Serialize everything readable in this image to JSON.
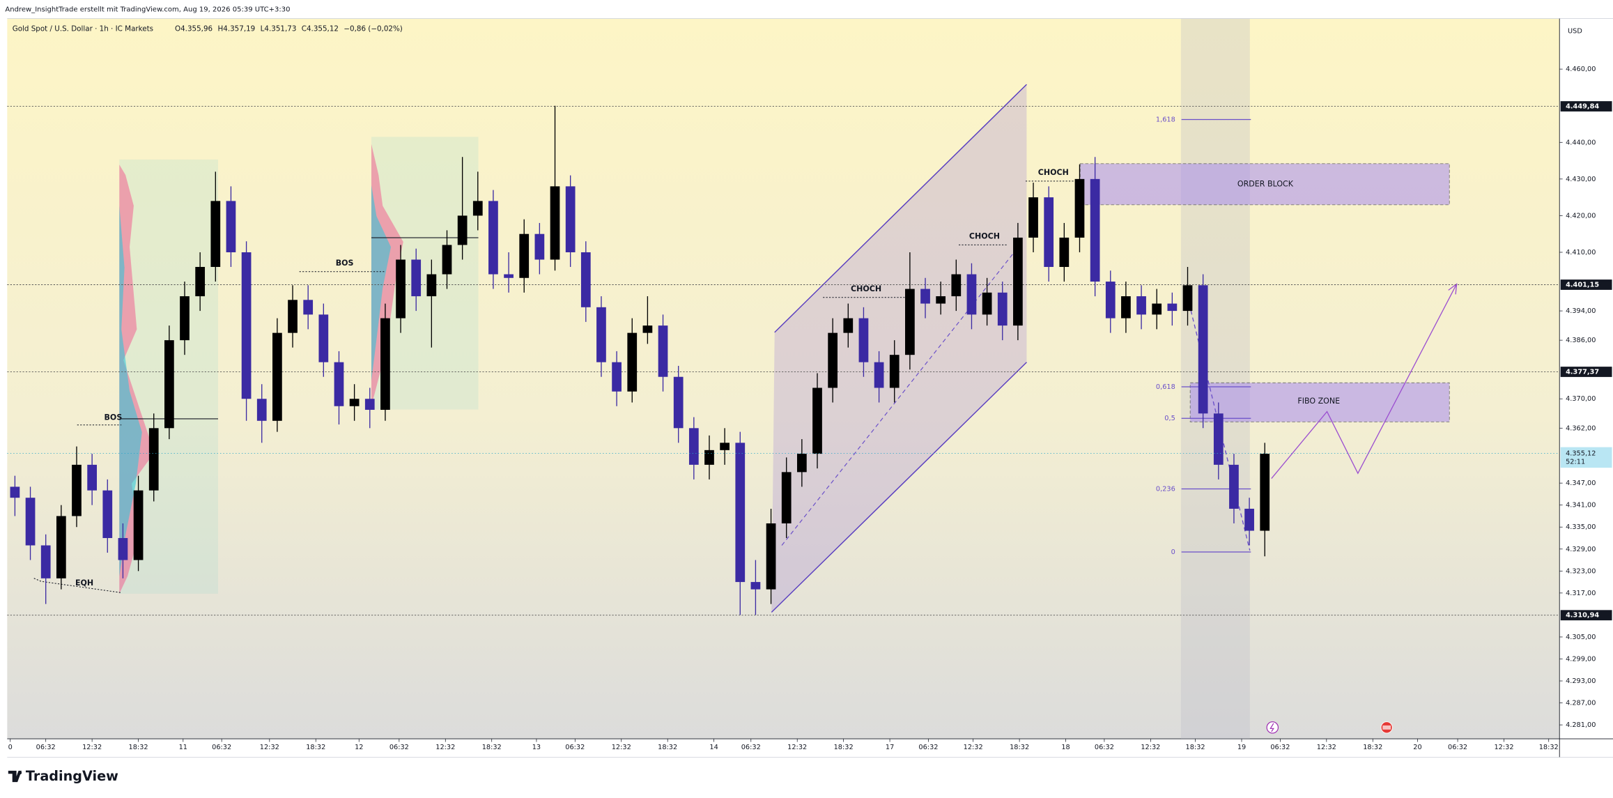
{
  "header": {
    "credit": "Andrew_InsightTrade erstellt mit TradingView.com, Aug 19, 2026 05:39 UTC+3:30",
    "currency": "USD",
    "logo": "TradingView"
  },
  "chart_data": {
    "type": "candlestick",
    "title": "Gold Spot / U.S. Dollar · 1h · IC Markets",
    "legend": [
      "O4.355,96",
      "H4.357,19",
      "L4.351,73",
      "C4.355,12",
      "−0,86 (−0,02%)"
    ],
    "up_color": "#000000",
    "down_color": "#3b2aa3",
    "ohlc": [
      [
        4346,
        4349,
        4338,
        4343
      ],
      [
        4343,
        4346,
        4326,
        4330
      ],
      [
        4330,
        4333,
        4314,
        4321
      ],
      [
        4321,
        4341,
        4318,
        4338
      ],
      [
        4338,
        4357,
        4335,
        4352
      ],
      [
        4352,
        4355,
        4341,
        4345
      ],
      [
        4345,
        4348,
        4328,
        4332
      ],
      [
        4332,
        4336,
        4321,
        4326
      ],
      [
        4326,
        4349,
        4323,
        4345
      ],
      [
        4345,
        4366,
        4342,
        4362
      ],
      [
        4362,
        4390,
        4359,
        4386
      ],
      [
        4386,
        4402,
        4382,
        4398
      ],
      [
        4398,
        4410,
        4394,
        4406
      ],
      [
        4406,
        4432,
        4402,
        4424
      ],
      [
        4424,
        4428,
        4406,
        4410
      ],
      [
        4410,
        4413,
        4364,
        4370
      ],
      [
        4370,
        4374,
        4358,
        4364
      ],
      [
        4364,
        4392,
        4361,
        4388
      ],
      [
        4388,
        4401,
        4384,
        4397
      ],
      [
        4397,
        4401,
        4389,
        4393
      ],
      [
        4393,
        4396,
        4376,
        4380
      ],
      [
        4380,
        4383,
        4363,
        4368
      ],
      [
        4368,
        4374,
        4364,
        4370
      ],
      [
        4370,
        4373,
        4362,
        4367
      ],
      [
        4367,
        4396,
        4364,
        4392
      ],
      [
        4392,
        4412,
        4388,
        4408
      ],
      [
        4408,
        4411,
        4394,
        4398
      ],
      [
        4398,
        4408,
        4384,
        4404
      ],
      [
        4404,
        4416,
        4400,
        4412
      ],
      [
        4412,
        4436,
        4408,
        4420
      ],
      [
        4420,
        4432,
        4416,
        4424
      ],
      [
        4424,
        4427,
        4400,
        4404
      ],
      [
        4404,
        4410,
        4399,
        4403
      ],
      [
        4403,
        4419,
        4399,
        4415
      ],
      [
        4415,
        4418,
        4404,
        4408
      ],
      [
        4408,
        4450,
        4405,
        4428
      ],
      [
        4428,
        4431,
        4406,
        4410
      ],
      [
        4410,
        4413,
        4391,
        4395
      ],
      [
        4395,
        4398,
        4376,
        4380
      ],
      [
        4380,
        4383,
        4368,
        4372
      ],
      [
        4372,
        4392,
        4369,
        4388
      ],
      [
        4388,
        4398,
        4385,
        4390
      ],
      [
        4390,
        4393,
        4372,
        4376
      ],
      [
        4376,
        4379,
        4358,
        4362
      ],
      [
        4362,
        4365,
        4348,
        4352
      ],
      [
        4352,
        4360,
        4348,
        4356
      ],
      [
        4356,
        4362,
        4352,
        4358
      ],
      [
        4358,
        4361,
        4311,
        4320
      ],
      [
        4320,
        4326,
        4311,
        4318
      ],
      [
        4318,
        4340,
        4314,
        4336
      ],
      [
        4336,
        4354,
        4332,
        4350
      ],
      [
        4350,
        4359,
        4346,
        4355
      ],
      [
        4355,
        4377,
        4351,
        4373
      ],
      [
        4373,
        4392,
        4369,
        4388
      ],
      [
        4388,
        4396,
        4384,
        4392
      ],
      [
        4392,
        4395,
        4376,
        4380
      ],
      [
        4380,
        4383,
        4369,
        4373
      ],
      [
        4373,
        4386,
        4369,
        4382
      ],
      [
        4382,
        4410,
        4378,
        4400
      ],
      [
        4400,
        4403,
        4392,
        4396
      ],
      [
        4396,
        4402,
        4393,
        4398
      ],
      [
        4398,
        4408,
        4394,
        4404
      ],
      [
        4404,
        4407,
        4389,
        4393
      ],
      [
        4393,
        4403,
        4390,
        4399
      ],
      [
        4399,
        4402,
        4386,
        4390
      ],
      [
        4390,
        4418,
        4386,
        4414
      ],
      [
        4414,
        4429,
        4410,
        4425
      ],
      [
        4425,
        4428,
        4402,
        4406
      ],
      [
        4406,
        4418,
        4402,
        4414
      ],
      [
        4414,
        4434,
        4410,
        4430
      ],
      [
        4430,
        4436,
        4398,
        4402
      ],
      [
        4402,
        4405,
        4388,
        4392
      ],
      [
        4392,
        4402,
        4388,
        4398
      ],
      [
        4398,
        4401,
        4389,
        4393
      ],
      [
        4393,
        4400,
        4389,
        4396
      ],
      [
        4396,
        4399,
        4390,
        4394
      ],
      [
        4394,
        4406,
        4390,
        4401
      ],
      [
        4401,
        4404,
        4362,
        4366
      ],
      [
        4366,
        4369,
        4348,
        4352
      ],
      [
        4352,
        4355,
        4336,
        4340
      ],
      [
        4340,
        4343,
        4330,
        4334
      ],
      [
        4334,
        4358,
        4327,
        4355
      ]
    ],
    "xlim": [
      -0.5,
      100.1
    ],
    "xticks": [
      {
        "value": -0.3,
        "label": "0"
      },
      {
        "value": 2.0,
        "label": "06:32"
      },
      {
        "value": 5.0,
        "label": "12:32"
      },
      {
        "value": 8.0,
        "label": "18:32"
      },
      {
        "value": 10.9,
        "label": "11"
      },
      {
        "value": 13.4,
        "label": "06:32"
      },
      {
        "value": 16.5,
        "label": "12:32"
      },
      {
        "value": 19.5,
        "label": "18:32"
      },
      {
        "value": 22.3,
        "label": "12"
      },
      {
        "value": 24.9,
        "label": "06:32"
      },
      {
        "value": 27.9,
        "label": "12:32"
      },
      {
        "value": 30.9,
        "label": "18:32"
      },
      {
        "value": 33.8,
        "label": "13"
      },
      {
        "value": 36.3,
        "label": "06:32"
      },
      {
        "value": 39.3,
        "label": "12:32"
      },
      {
        "value": 42.3,
        "label": "18:32"
      },
      {
        "value": 45.3,
        "label": "14"
      },
      {
        "value": 47.7,
        "label": "06:32"
      },
      {
        "value": 50.7,
        "label": "12:32"
      },
      {
        "value": 53.7,
        "label": "18:32"
      },
      {
        "value": 56.7,
        "label": "17"
      },
      {
        "value": 59.2,
        "label": "06:32"
      },
      {
        "value": 62.1,
        "label": "12:32"
      },
      {
        "value": 65.1,
        "label": "18:32"
      },
      {
        "value": 68.1,
        "label": "18"
      },
      {
        "value": 70.6,
        "label": "06:32"
      },
      {
        "value": 73.6,
        "label": "12:32"
      },
      {
        "value": 76.5,
        "label": "18:32"
      },
      {
        "value": 79.5,
        "label": "19"
      },
      {
        "value": 82.0,
        "label": "06:32"
      },
      {
        "value": 85.0,
        "label": "12:32"
      },
      {
        "value": 88.0,
        "label": "18:32"
      },
      {
        "value": 90.9,
        "label": "20"
      },
      {
        "value": 93.5,
        "label": "06:32"
      },
      {
        "value": 96.5,
        "label": "12:32"
      },
      {
        "value": 99.4,
        "label": "18:32"
      }
    ],
    "ylim": [
      4277.2,
      4473.8
    ],
    "yticks": [
      {
        "value": 4460,
        "label": "4.460,00"
      },
      {
        "value": 4440,
        "label": "4.440,00"
      },
      {
        "value": 4430,
        "label": "4.430,00"
      },
      {
        "value": 4420,
        "label": "4.420,00"
      },
      {
        "value": 4410,
        "label": "4.410,00"
      },
      {
        "value": 4394,
        "label": "4.394,00"
      },
      {
        "value": 4386,
        "label": "4.386,00"
      },
      {
        "value": 4370,
        "label": "4.370,00"
      },
      {
        "value": 4362,
        "label": "4.362,00"
      },
      {
        "value": 4347,
        "label": "4.347,00"
      },
      {
        "value": 4341,
        "label": "4.341,00"
      },
      {
        "value": 4335,
        "label": "4.335,00"
      },
      {
        "value": 4329,
        "label": "4.329,00"
      },
      {
        "value": 4323,
        "label": "4.323,00"
      },
      {
        "value": 4317,
        "label": "4.317,00"
      },
      {
        "value": 4305,
        "label": "4.305,00"
      },
      {
        "value": 4299,
        "label": "4.299,00"
      },
      {
        "value": 4293,
        "label": "4.293,00"
      },
      {
        "value": 4287,
        "label": "4.287,00"
      },
      {
        "value": 4281,
        "label": "4.281,00"
      }
    ],
    "grid": false,
    "price_lines": [
      {
        "value": 4449.84,
        "label": "4.449,84"
      },
      {
        "value": 4401.15,
        "label": "4.401,15"
      },
      {
        "value": 4377.37,
        "label": "4.377,37"
      },
      {
        "value": 4310.94,
        "label": "4.310,94"
      }
    ],
    "last_price": {
      "value": 4355.12,
      "label": "4.355,12",
      "countdown": "52:11"
    },
    "fibonacci": {
      "from": 4328.2,
      "to": 4401.15,
      "start": 75.6,
      "end": 80.1,
      "levels": [
        {
          "value": 1.618,
          "label": "1,618"
        },
        {
          "value": 0.618,
          "label": "0,618"
        },
        {
          "value": 0.5,
          "label": "0,5"
        },
        {
          "value": 0.236,
          "label": "0,236"
        },
        0
      ]
    },
    "annotations": [
      "EQH",
      "BOS",
      "BOS",
      "CHOCH",
      "CHOCH",
      "CHOCH",
      "ORDER BLOCK",
      "FIBO ZONE"
    ]
  }
}
